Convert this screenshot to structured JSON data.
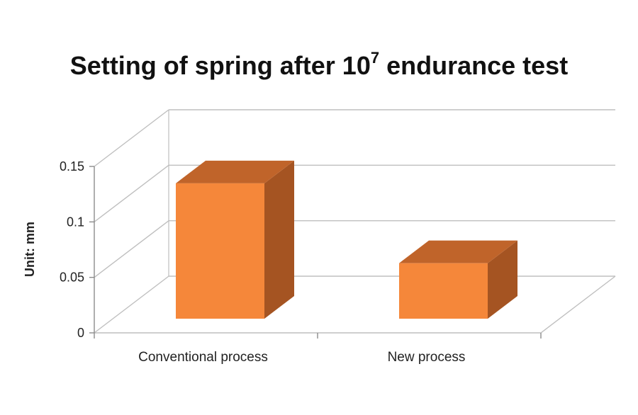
{
  "chart_data": {
    "type": "bar",
    "title": "Setting of spring after 10",
    "title_superscript": "7",
    "title_suffix": " endurance test",
    "ylabel": "Unit: mm",
    "xlabel": "",
    "categories": [
      "Conventional process",
      "New process"
    ],
    "values": [
      0.122,
      0.05
    ],
    "ylim": [
      0,
      0.15
    ],
    "yticks": [
      0,
      0.05,
      0.1,
      0.15
    ],
    "ytick_labels": [
      "0",
      "0.05",
      "0.1",
      "0.15"
    ],
    "grid": true,
    "style": "3d-column",
    "colors": {
      "front": "#F5873A",
      "top": "#C0642A",
      "side": "#A55422",
      "grid": "#BFBFBF",
      "axis": "#8C8C8C"
    }
  }
}
